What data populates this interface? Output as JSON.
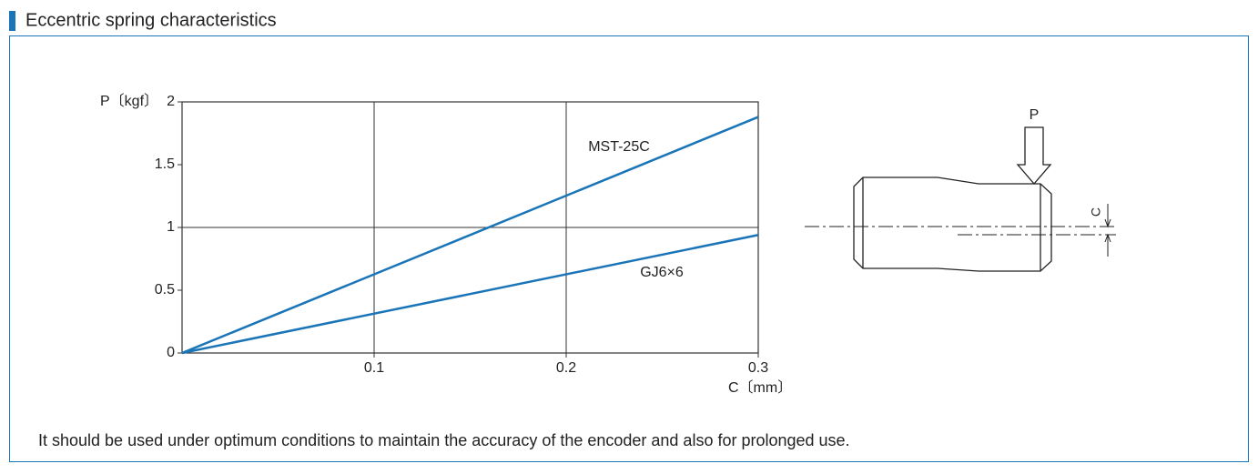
{
  "header": {
    "title": "Eccentric spring characteristics"
  },
  "chart_data": {
    "type": "line",
    "y_label": "P〔kgf〕",
    "x_label": "C〔mm〕",
    "x": [
      0,
      0.3
    ],
    "series": [
      {
        "name": "MST-25C",
        "color": "#1a75b8",
        "values": [
          0,
          1.88
        ]
      },
      {
        "name": "GJ6×6",
        "color": "#1a75b8",
        "values": [
          0,
          0.94
        ]
      }
    ],
    "xlim": [
      0,
      0.3
    ],
    "xticks": [
      0.1,
      0.2,
      0.3
    ],
    "ylim": [
      0,
      2
    ],
    "yticks": [
      0,
      0.5,
      1,
      1.5,
      2
    ],
    "xgrid": [
      0.1,
      0.2
    ],
    "ygrid": [
      1
    ]
  },
  "diagram": {
    "force_label": "P",
    "offset_label": "C"
  },
  "note": "It should be used under optimum conditions to maintain the accuracy of the encoder and also for prolonged use."
}
